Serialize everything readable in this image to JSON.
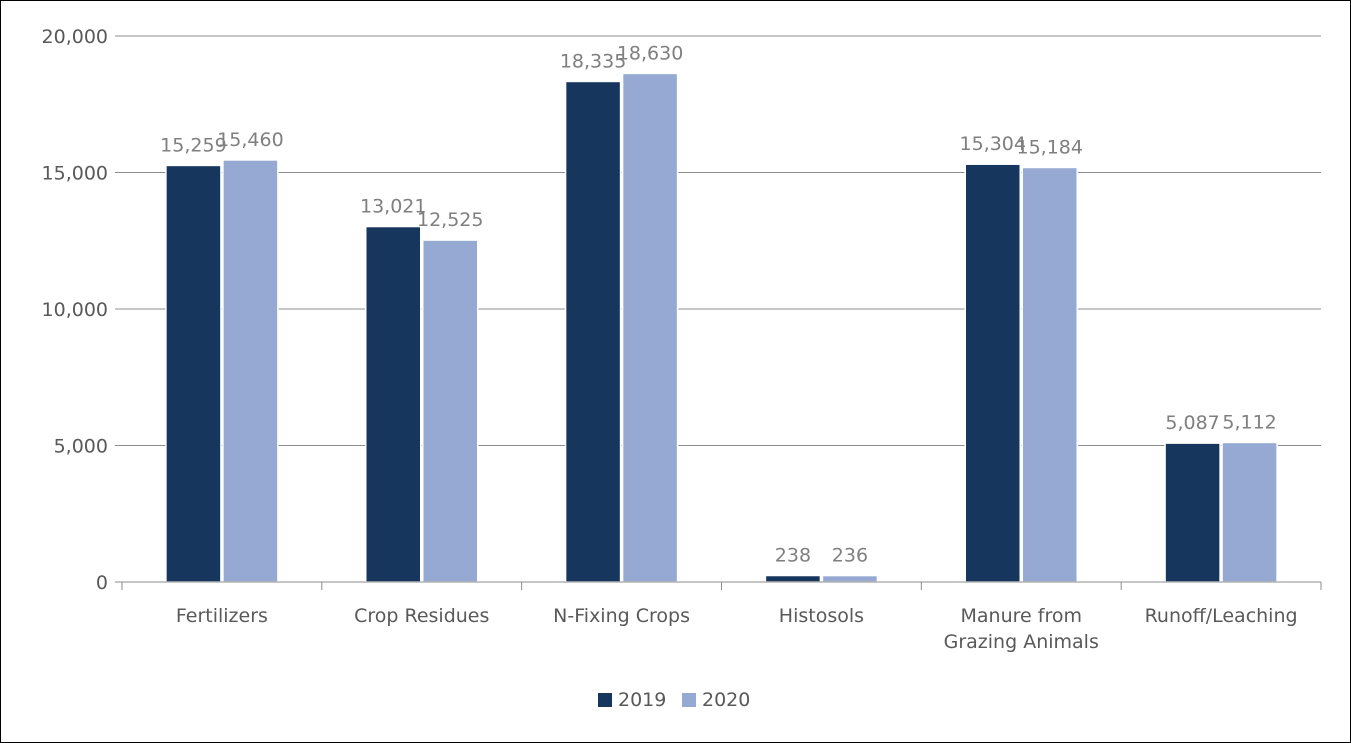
{
  "chart_data": {
    "type": "bar",
    "title": "",
    "categories": [
      "Fertilizers",
      "Crop Residues",
      "N-Fixing Crops",
      "Histosols",
      "Manure from Grazing Animals",
      "Runoff/Leaching"
    ],
    "category_label_lines": [
      [
        "Fertilizers"
      ],
      [
        "Crop Residues"
      ],
      [
        "N-Fixing Crops"
      ],
      [
        "Histosols"
      ],
      [
        "Manure from",
        "Grazing Animals"
      ],
      [
        "Runoff/Leaching"
      ]
    ],
    "series": [
      {
        "name": "2019",
        "color": "#17365d",
        "values": [
          15259,
          13021,
          18335,
          238,
          15304,
          5087
        ]
      },
      {
        "name": "2020",
        "color": "#95a9d2",
        "values": [
          15460,
          12525,
          18630,
          236,
          15184,
          5112
        ]
      }
    ],
    "value_labels": [
      [
        "15,259",
        "13,021",
        "18,335",
        "238",
        "15,304",
        "5,087"
      ],
      [
        "15,460",
        "12,525",
        "18,630",
        "236",
        "15,184",
        "5,112"
      ]
    ],
    "ylim": [
      0,
      20000
    ],
    "yticks": [
      0,
      5000,
      10000,
      15000,
      20000
    ],
    "ytick_labels": [
      "0",
      "5,000",
      "10,000",
      "15,000",
      "20,000"
    ],
    "xlabel": "",
    "ylabel": "",
    "grid": true,
    "legend_position": "bottom-center",
    "colors": {
      "axis_text": "#595959",
      "label_text": "#7f7f7f",
      "grid": "#8c8c8c",
      "axis": "#8c8c8c",
      "frame": "#000000"
    }
  }
}
